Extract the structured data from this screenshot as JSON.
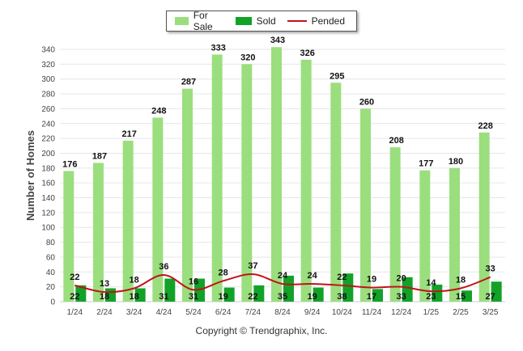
{
  "colors": {
    "for_sale": "#9bde7e",
    "sold": "#12a228",
    "pended": "#c0141a",
    "grid": "#e6e6e6",
    "axis_text": "#444444"
  },
  "legend": {
    "items": [
      {
        "label": "For Sale",
        "color": "#9bde7e",
        "kind": "bar"
      },
      {
        "label": "Sold",
        "color": "#12a228",
        "kind": "bar"
      },
      {
        "label": "Pended",
        "color": "#c0141a",
        "kind": "line"
      }
    ]
  },
  "copyright": "Copyright © Trendgraphix, Inc.",
  "chart_data": {
    "type": "bar",
    "ylabel": "Number of Homes",
    "xlabel": "",
    "title": "",
    "ylim": [
      0,
      340
    ],
    "yticks": [
      0,
      20,
      40,
      60,
      80,
      100,
      120,
      140,
      160,
      180,
      200,
      220,
      240,
      260,
      280,
      300,
      320,
      340
    ],
    "grid": true,
    "legend_position": "top-center",
    "categories": [
      "1/24",
      "2/24",
      "3/24",
      "4/24",
      "5/24",
      "6/24",
      "7/24",
      "8/24",
      "9/24",
      "10/24",
      "11/24",
      "12/24",
      "1/25",
      "2/25",
      "3/25"
    ],
    "series": [
      {
        "name": "For Sale",
        "type": "bar",
        "values": [
          176,
          187,
          217,
          248,
          287,
          333,
          320,
          343,
          326,
          295,
          260,
          208,
          177,
          180,
          228
        ]
      },
      {
        "name": "Sold",
        "type": "bar",
        "values": [
          22,
          18,
          18,
          31,
          31,
          19,
          22,
          35,
          19,
          38,
          17,
          33,
          23,
          15,
          27
        ]
      },
      {
        "name": "Pended",
        "type": "line",
        "values": [
          22,
          13,
          18,
          36,
          16,
          28,
          37,
          24,
          24,
          22,
          19,
          20,
          14,
          18,
          33
        ]
      }
    ]
  }
}
